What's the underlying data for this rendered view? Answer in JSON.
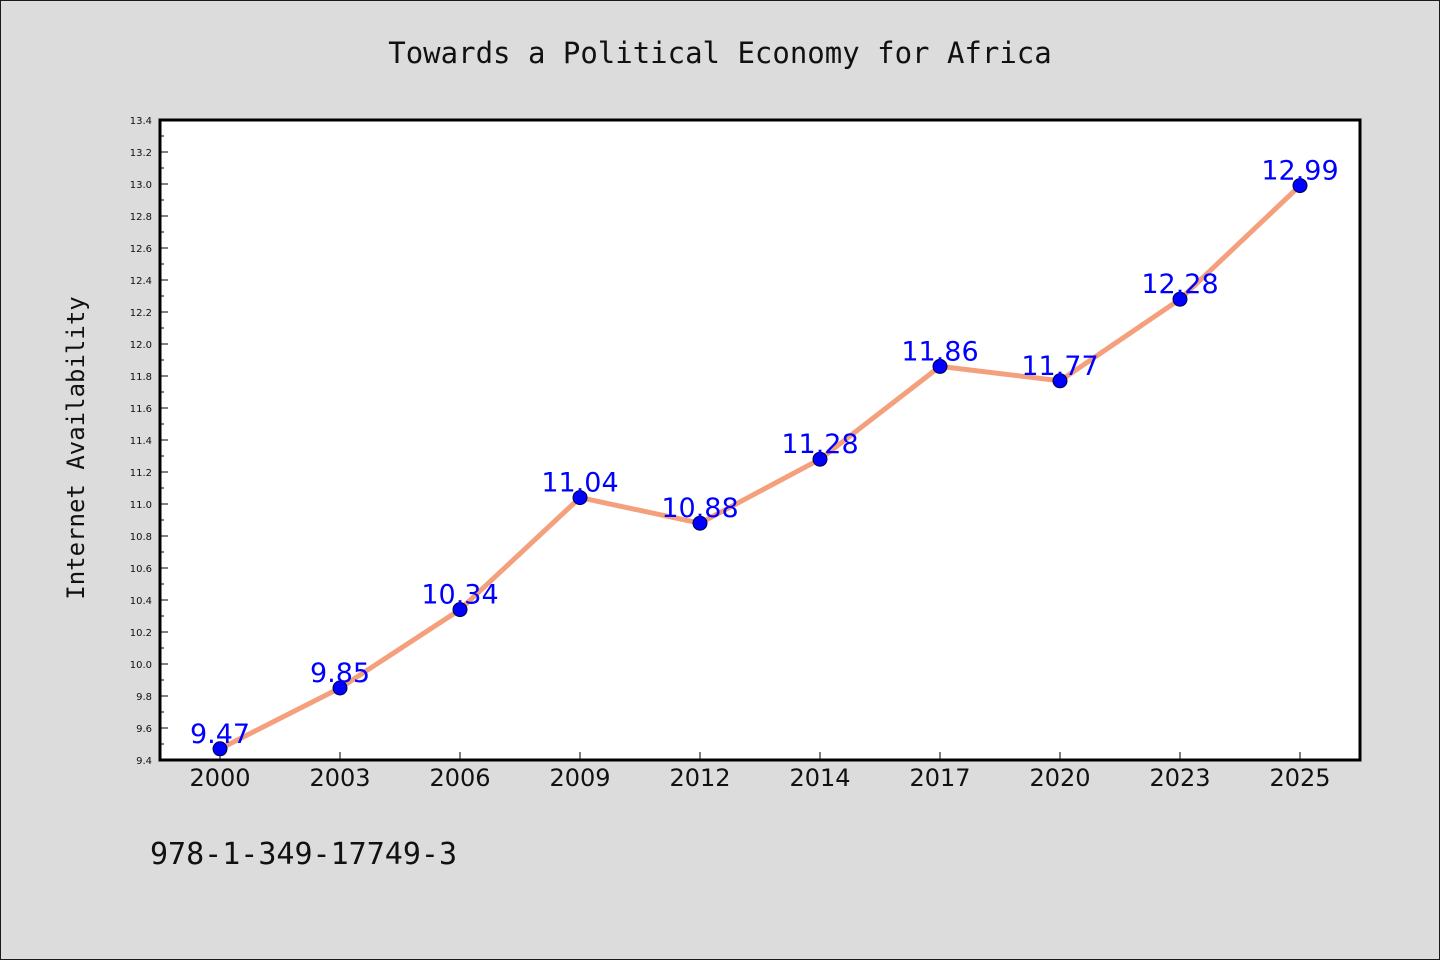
{
  "isbn": "978-1-349-17749-3",
  "colors": {
    "background": "#dcdcdc",
    "plot_background": "#ffffff",
    "line": "#f4a07c",
    "marker": "#0000ff",
    "label": "#0000ff"
  },
  "chart_data": {
    "type": "line",
    "title": "Towards a Political Economy for Africa",
    "xlabel": "",
    "ylabel": "Internet Availability",
    "categories": [
      "2000",
      "2003",
      "2006",
      "2009",
      "2012",
      "2014",
      "2017",
      "2020",
      "2023",
      "2025"
    ],
    "series": [
      {
        "values": [
          9.47,
          9.85,
          10.34,
          11.04,
          10.88,
          11.28,
          11.86,
          11.77,
          12.28,
          12.99
        ],
        "labels": [
          "9.47",
          "9.85",
          "10.34",
          "11.04",
          "10.88",
          "11.28",
          "11.86",
          "11.77",
          "12.28",
          "12.99"
        ],
        "color": "#f4a07c",
        "marker_color": "#0000ff"
      }
    ],
    "ylim": [
      9.4,
      13.4
    ],
    "yticks": [
      "9.4",
      "9.6",
      "9.8",
      "10.0",
      "10.2",
      "10.4",
      "10.6",
      "10.8",
      "11.0",
      "11.2",
      "11.4",
      "11.6",
      "11.8",
      "12.0",
      "12.2",
      "12.4",
      "12.6",
      "12.8",
      "13.0",
      "13.2",
      "13.4"
    ],
    "grid": false,
    "legend": "none"
  }
}
